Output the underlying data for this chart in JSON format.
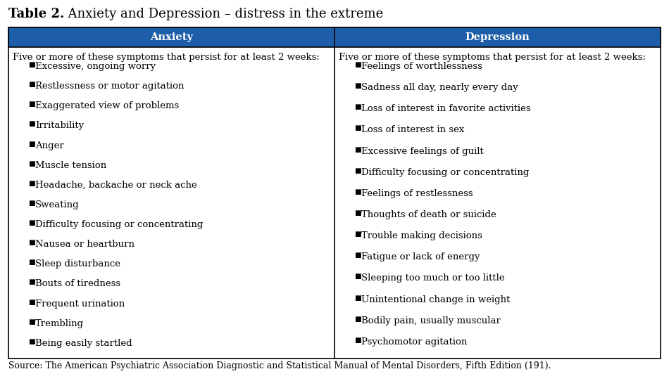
{
  "title_bold": "Table 2.",
  "title_regular": "  Anxiety and Depression – distress in the extreme",
  "header_bg": "#1E5EA8",
  "header_text_color": "#FFFFFF",
  "col1_header": "Anxiety",
  "col2_header": "Depression",
  "col1_intro": "Five or more of these symptoms that persist for at least 2 weeks:",
  "col2_intro": "Five or more of these symptoms that persist for at least 2 weeks:",
  "col1_items": [
    "Excessive, ongoing worry",
    "Restlessness or motor agitation",
    "Exaggerated view of problems",
    "Irritability",
    "Anger",
    "Muscle tension",
    "Headache, backache or neck ache",
    "Sweating",
    "Difficulty focusing or concentrating",
    "Nausea or heartburn",
    "Sleep disturbance",
    "Bouts of tiredness",
    "Frequent urination",
    "Trembling",
    "Being easily startled"
  ],
  "col2_items": [
    "Feelings of worthlessness",
    "Sadness all day, nearly every day",
    "Loss of interest in favorite activities",
    "Loss of interest in sex",
    "Excessive feelings of guilt",
    "Difficulty focusing or concentrating",
    "Feelings of restlessness",
    "Thoughts of death or suicide",
    "Trouble making decisions",
    "Fatigue or lack of energy",
    "Sleeping too much or too little",
    "Unintentional change in weight",
    "Bodily pain, usually muscular",
    "Psychomotor agitation"
  ],
  "source_text": "Source: The American Psychiatric Association Diagnostic and Statistical Manual of Mental Disorders, Fifth Edition (191).",
  "bg_color": "#FFFFFF",
  "border_color": "#000000",
  "table_bg": "#FFFFFF",
  "title_fontsize": 13,
  "header_fontsize": 10.5,
  "body_fontsize": 9.5,
  "source_fontsize": 9
}
